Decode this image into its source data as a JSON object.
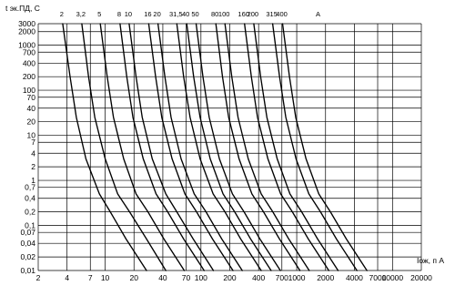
{
  "chart_data": {
    "type": "line",
    "title": "",
    "ylabel": "t эк.ПД, С",
    "xlabel": "Iож, п А",
    "x_scale": "log",
    "y_scale": "log",
    "xlim": [
      2,
      20000
    ],
    "ylim": [
      0.01,
      3000
    ],
    "grid": true,
    "x_ticks": [
      {
        "value": 2,
        "label": "2"
      },
      {
        "value": 4,
        "label": "4"
      },
      {
        "value": 7,
        "label": "7"
      },
      {
        "value": 10,
        "label": "10"
      },
      {
        "value": 20,
        "label": "20"
      },
      {
        "value": 40,
        "label": "40"
      },
      {
        "value": 70,
        "label": "70"
      },
      {
        "value": 100,
        "label": "100"
      },
      {
        "value": 200,
        "label": "200"
      },
      {
        "value": 400,
        "label": "400"
      },
      {
        "value": 700,
        "label": "700"
      },
      {
        "value": 1000,
        "label": "1000"
      },
      {
        "value": 2000,
        "label": "2000"
      },
      {
        "value": 4000,
        "label": "4000"
      },
      {
        "value": 7000,
        "label": "7000"
      },
      {
        "value": 10000,
        "label": "10000"
      },
      {
        "value": 20000,
        "label": "20000"
      }
    ],
    "y_ticks": [
      {
        "value": 3000,
        "label": "3000"
      },
      {
        "value": 2000,
        "label": "2000"
      },
      {
        "value": 1000,
        "label": "1000"
      },
      {
        "value": 700,
        "label": "700"
      },
      {
        "value": 400,
        "label": "400"
      },
      {
        "value": 200,
        "label": "200"
      },
      {
        "value": 100,
        "label": "100"
      },
      {
        "value": 70,
        "label": "70"
      },
      {
        "value": 40,
        "label": "40"
      },
      {
        "value": 20,
        "label": "20"
      },
      {
        "value": 10,
        "label": "10"
      },
      {
        "value": 7,
        "label": "7"
      },
      {
        "value": 4,
        "label": "4"
      },
      {
        "value": 2,
        "label": "2"
      },
      {
        "value": 1,
        "label": "1"
      },
      {
        "value": 0.7,
        "label": "0,7"
      },
      {
        "value": 0.4,
        "label": "0,4"
      },
      {
        "value": 0.2,
        "label": "0,2"
      },
      {
        "value": 0.1,
        "label": "0,1"
      },
      {
        "value": 0.07,
        "label": "0,07"
      },
      {
        "value": 0.04,
        "label": "0,04"
      },
      {
        "value": 0.02,
        "label": "0,02"
      },
      {
        "value": 0.01,
        "label": "0,01"
      }
    ],
    "rating_unit_label": "А",
    "series": [
      {
        "name": "2",
        "x": [
          3.6,
          4.3,
          5.0,
          6.3,
          8.7,
          11.3,
          16.5,
          27
        ],
        "y": [
          3000,
          200,
          25,
          3,
          0.5,
          0.2,
          0.05,
          0.01
        ]
      },
      {
        "name": "3,2",
        "x": [
          5.7,
          6.7,
          7.8,
          10.0,
          13.5,
          18,
          27,
          43
        ],
        "y": [
          3000,
          200,
          25,
          3,
          0.5,
          0.2,
          0.05,
          0.01
        ]
      },
      {
        "name": "5",
        "x": [
          8.9,
          10.5,
          12.2,
          15.6,
          21,
          28,
          41,
          67
        ],
        "y": [
          3000,
          200,
          25,
          3,
          0.5,
          0.2,
          0.05,
          0.01
        ]
      },
      {
        "name": "8",
        "x": [
          14.3,
          16.8,
          19.5,
          25,
          34,
          45,
          66,
          108
        ],
        "y": [
          3000,
          200,
          25,
          3,
          0.5,
          0.2,
          0.05,
          0.01
        ]
      },
      {
        "name": "10",
        "x": [
          17.8,
          21,
          24.4,
          31,
          43,
          56,
          83,
          135
        ],
        "y": [
          3000,
          200,
          25,
          3,
          0.5,
          0.2,
          0.05,
          0.01
        ]
      },
      {
        "name": "16",
        "x": [
          28.5,
          33.6,
          39,
          50,
          68,
          90,
          132,
          216
        ],
        "y": [
          3000,
          200,
          25,
          3,
          0.5,
          0.2,
          0.05,
          0.01
        ]
      },
      {
        "name": "20",
        "x": [
          35.6,
          42,
          48.8,
          62,
          85,
          113,
          165,
          270
        ],
        "y": [
          3000,
          200,
          25,
          3,
          0.5,
          0.2,
          0.05,
          0.01
        ]
      },
      {
        "name": "31,5",
        "x": [
          56,
          66,
          77,
          98,
          134,
          178,
          260,
          425
        ],
        "y": [
          3000,
          200,
          25,
          3,
          0.5,
          0.2,
          0.05,
          0.01
        ]
      },
      {
        "name": "40",
        "x": [
          71,
          84,
          98,
          125,
          170,
          225,
          330,
          540
        ],
        "y": [
          3000,
          200,
          25,
          3,
          0.5,
          0.2,
          0.05,
          0.01
        ]
      },
      {
        "name": "50",
        "x": [
          89,
          105,
          122,
          156,
          213,
          282,
          413,
          675
        ],
        "y": [
          3000,
          200,
          25,
          3,
          0.5,
          0.2,
          0.05,
          0.01
        ]
      },
      {
        "name": "80",
        "x": [
          143,
          168,
          195,
          250,
          340,
          450,
          660,
          1080
        ],
        "y": [
          3000,
          200,
          25,
          3,
          0.5,
          0.2,
          0.05,
          0.01
        ]
      },
      {
        "name": "100",
        "x": [
          178,
          210,
          244,
          312,
          425,
          563,
          825,
          1350
        ],
        "y": [
          3000,
          200,
          25,
          3,
          0.5,
          0.2,
          0.05,
          0.01
        ]
      },
      {
        "name": "160",
        "x": [
          285,
          336,
          390,
          500,
          680,
          900,
          1320,
          2160
        ],
        "y": [
          3000,
          200,
          25,
          3,
          0.5,
          0.2,
          0.05,
          0.01
        ]
      },
      {
        "name": "200",
        "x": [
          356,
          420,
          488,
          625,
          850,
          1125,
          1650,
          2700
        ],
        "y": [
          3000,
          200,
          25,
          3,
          0.5,
          0.2,
          0.05,
          0.01
        ]
      },
      {
        "name": "315",
        "x": [
          561,
          662,
          769,
          984,
          1340,
          1772,
          2600,
          4250
        ],
        "y": [
          3000,
          200,
          25,
          3,
          0.5,
          0.2,
          0.05,
          0.01
        ]
      },
      {
        "name": "400",
        "x": [
          712,
          840,
          976,
          1250,
          1700,
          2250,
          3300,
          5400
        ],
        "y": [
          3000,
          200,
          25,
          3,
          0.5,
          0.2,
          0.05,
          0.01
        ]
      }
    ]
  }
}
